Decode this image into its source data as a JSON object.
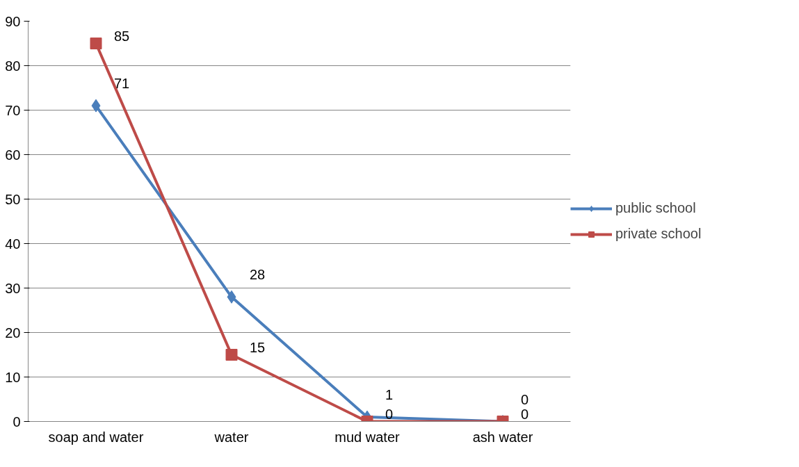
{
  "chart_data": {
    "type": "line",
    "categories": [
      "soap and water",
      "water",
      "mud water",
      "ash water"
    ],
    "series": [
      {
        "name": "public school",
        "color": "#4a7ebb",
        "marker": "diamond",
        "values": [
          71,
          28,
          1,
          0
        ]
      },
      {
        "name": "private school",
        "color": "#be4b48",
        "marker": "square",
        "values": [
          85,
          15,
          0,
          0
        ]
      }
    ],
    "ylim": [
      0,
      90
    ],
    "yticks": [
      0,
      10,
      20,
      30,
      40,
      50,
      60,
      70,
      80,
      90
    ],
    "grid": "y",
    "legend": "right",
    "data_labels": true,
    "line_style": "solid"
  }
}
